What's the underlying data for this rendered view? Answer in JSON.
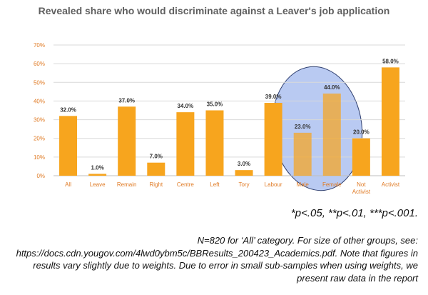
{
  "chart_data": {
    "type": "bar",
    "title": "Revealed share who would discriminate against a Leaver's job application",
    "categories": [
      "All",
      "Leave",
      "Remain",
      "Right",
      "Centre",
      "Left",
      "Tory",
      "Labour",
      "Male",
      "Female",
      "Not Activist",
      "Activist"
    ],
    "values": [
      32.0,
      1.0,
      37.0,
      7.0,
      34.0,
      35.0,
      3.0,
      39.0,
      23.0,
      44.0,
      20.0,
      58.0
    ],
    "data_labels": [
      "32.0%",
      "1.0%",
      "37.0%",
      "7.0%",
      "34.0%",
      "35.0%",
      "3.0%",
      "39.0%",
      "23.0%",
      "44.0%",
      "20.0%",
      "58.0%"
    ],
    "y_ticks": [
      "0%",
      "10%",
      "20%",
      "30%",
      "40%",
      "50%",
      "60%",
      "70%"
    ],
    "ylim": [
      0,
      70
    ],
    "grid": true,
    "highlight": [
      "Male",
      "Female"
    ],
    "colors": {
      "bar": "#f7a51e",
      "highlight_fill": "#7f9ee8",
      "tick_label": "#e07b25",
      "grid": "#d9d9d9"
    }
  },
  "notes": {
    "significance": "*p<.05, **p<.01, ***p<.001.",
    "footnote": "N=820 for ‘All’ category. For size of other groups, see: https://docs.cdn.yougov.com/4lwd0ybm5c/BBResults_200423_Academics.pdf. Note that figures in results vary slightly due to weights. Due to error in small sub-samples when using weights, we present raw data in the report"
  }
}
